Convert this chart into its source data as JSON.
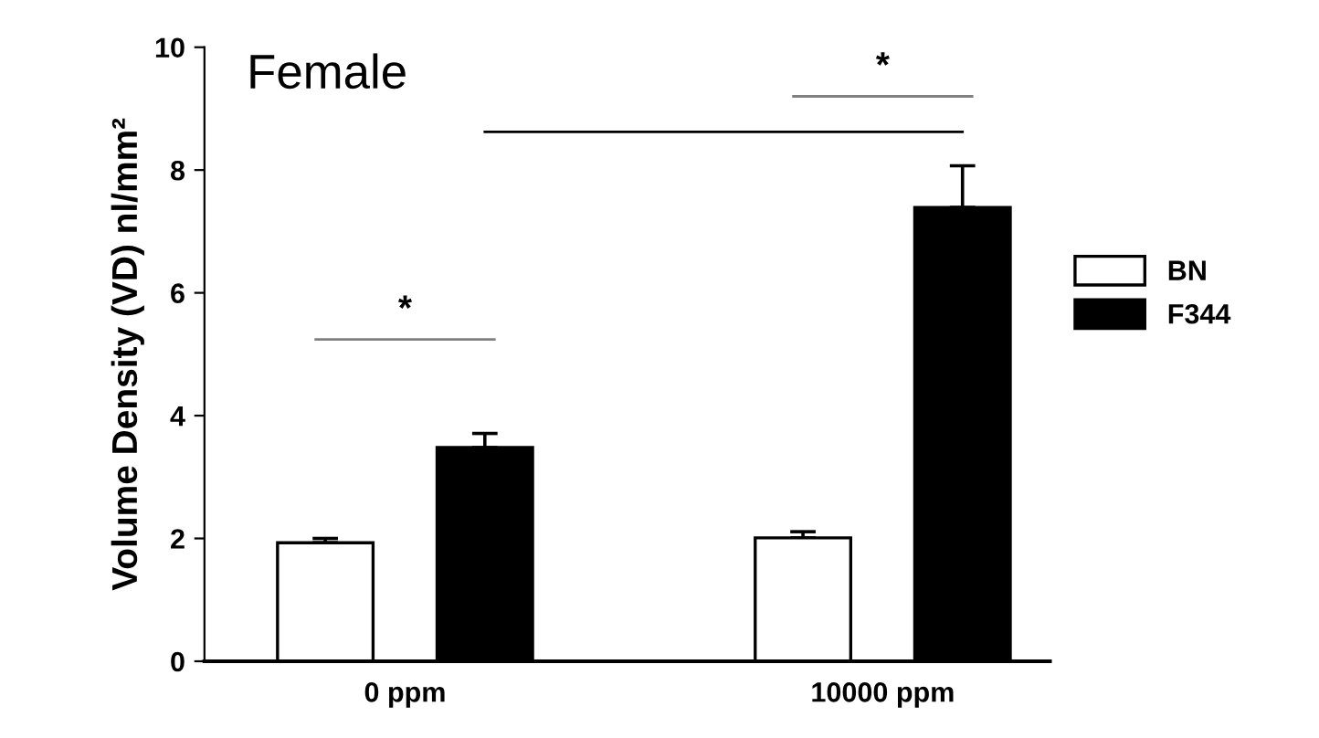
{
  "chart_data": {
    "type": "bar",
    "title": "Female",
    "ylabel": "Volume Density (VD) nl/mm²",
    "categories": [
      "0 ppm",
      "10000 ppm"
    ],
    "series": [
      {
        "name": "BN",
        "color": "#ffffff",
        "values": [
          1.93,
          2.01
        ],
        "errors": [
          0.07,
          0.1
        ]
      },
      {
        "name": "F344",
        "color": "#000000",
        "values": [
          3.48,
          7.39
        ],
        "errors": [
          0.23,
          0.68
        ]
      }
    ],
    "ylim": [
      0,
      10
    ],
    "yticks": [
      0,
      2,
      4,
      6,
      8,
      10
    ],
    "legend": "right",
    "grid": false,
    "annotations": [
      "*",
      "*"
    ],
    "ref_lines": [
      {
        "axis": "y",
        "value": 8.62,
        "color": "#000000"
      }
    ]
  }
}
